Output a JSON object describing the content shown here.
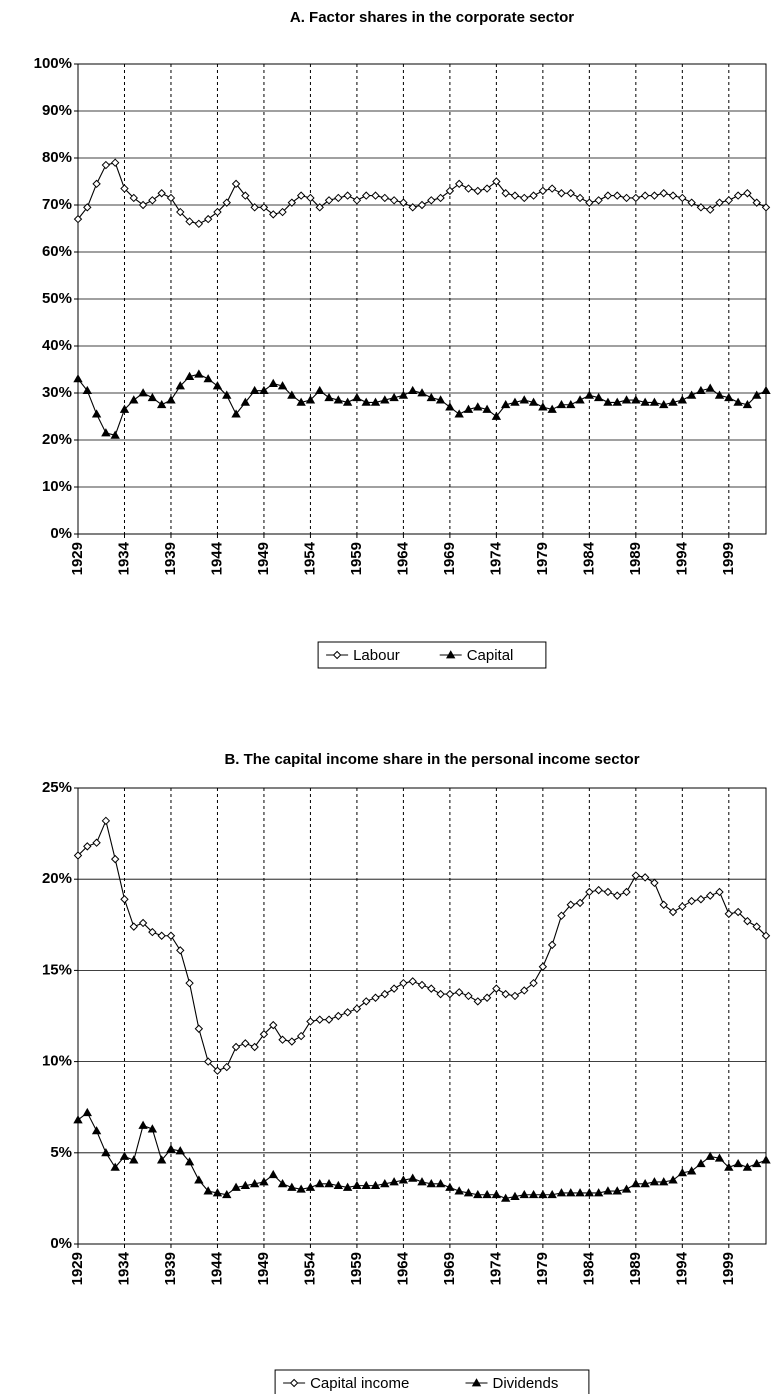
{
  "chart_data": [
    {
      "type": "line",
      "title": "A. Factor shares in the corporate sector",
      "x": [
        1929,
        1930,
        1931,
        1932,
        1933,
        1934,
        1935,
        1936,
        1937,
        1938,
        1939,
        1940,
        1941,
        1942,
        1943,
        1944,
        1945,
        1946,
        1947,
        1948,
        1949,
        1950,
        1951,
        1952,
        1953,
        1954,
        1955,
        1956,
        1957,
        1958,
        1959,
        1960,
        1961,
        1962,
        1963,
        1964,
        1965,
        1966,
        1967,
        1968,
        1969,
        1970,
        1971,
        1972,
        1973,
        1974,
        1975,
        1976,
        1977,
        1978,
        1979,
        1980,
        1981,
        1982,
        1983,
        1984,
        1985,
        1986,
        1987,
        1988,
        1989,
        1990,
        1991,
        1992,
        1993,
        1994,
        1995,
        1996,
        1997,
        1998,
        1999,
        2000,
        2001,
        2002,
        2003
      ],
      "xlim": [
        1929,
        2003
      ],
      "xticks": [
        1929,
        1934,
        1939,
        1944,
        1949,
        1954,
        1959,
        1964,
        1969,
        1974,
        1979,
        1984,
        1989,
        1994,
        1999
      ],
      "ylim": [
        0,
        100
      ],
      "yticks": [
        {
          "value": 0,
          "label": "0%"
        },
        {
          "value": 10,
          "label": "10%"
        },
        {
          "value": 20,
          "label": "20%"
        },
        {
          "value": 30,
          "label": "30%"
        },
        {
          "value": 40,
          "label": "40%"
        },
        {
          "value": 50,
          "label": "50%"
        },
        {
          "value": 60,
          "label": "60%"
        },
        {
          "value": 70,
          "label": "70%"
        },
        {
          "value": 80,
          "label": "80%"
        },
        {
          "value": 90,
          "label": "90%"
        },
        {
          "value": 100,
          "label": "100%"
        }
      ],
      "grid": true,
      "xgrid_style": "dashed",
      "legend": "bottom",
      "series": [
        {
          "name": "Labour",
          "color": "#000000",
          "marker": "diamond",
          "values": [
            67,
            69.5,
            74.5,
            78.5,
            79,
            73.5,
            71.5,
            70,
            71,
            72.5,
            71.5,
            68.5,
            66.5,
            66,
            67,
            68.5,
            70.5,
            74.5,
            72,
            69.5,
            69.5,
            68,
            68.5,
            70.5,
            72,
            71.5,
            69.5,
            71,
            71.5,
            72,
            71,
            72,
            72,
            71.5,
            71,
            70.5,
            69.5,
            70,
            71,
            71.5,
            73,
            74.5,
            73.5,
            73,
            73.5,
            75,
            72.5,
            72,
            71.5,
            72,
            73,
            73.5,
            72.5,
            72.5,
            71.5,
            70.5,
            71,
            72,
            72,
            71.5,
            71.5,
            72,
            72,
            72.5,
            72,
            71.5,
            70.5,
            69.5,
            69,
            70.5,
            71,
            72,
            72.5,
            70.5,
            69.5
          ]
        },
        {
          "name": "Capital",
          "color": "#000000",
          "marker": "triangle",
          "values": [
            33,
            30.5,
            25.5,
            21.5,
            21,
            26.5,
            28.5,
            30,
            29,
            27.5,
            28.5,
            31.5,
            33.5,
            34,
            33,
            31.5,
            29.5,
            25.5,
            28,
            30.5,
            30.5,
            32,
            31.5,
            29.5,
            28,
            28.5,
            30.5,
            29,
            28.5,
            28,
            29,
            28,
            28,
            28.5,
            29,
            29.5,
            30.5,
            30,
            29,
            28.5,
            27,
            25.5,
            26.5,
            27,
            26.5,
            25,
            27.5,
            28,
            28.5,
            28,
            27,
            26.5,
            27.5,
            27.5,
            28.5,
            29.5,
            29,
            28,
            28,
            28.5,
            28.5,
            28,
            28,
            27.5,
            28,
            28.5,
            29.5,
            30.5,
            31,
            29.5,
            29,
            28,
            27.5,
            29.5,
            30.5
          ]
        }
      ]
    },
    {
      "type": "line",
      "title": "B. The capital income share in the personal income sector",
      "x": [
        1929,
        1930,
        1931,
        1932,
        1933,
        1934,
        1935,
        1936,
        1937,
        1938,
        1939,
        1940,
        1941,
        1942,
        1943,
        1944,
        1945,
        1946,
        1947,
        1948,
        1949,
        1950,
        1951,
        1952,
        1953,
        1954,
        1955,
        1956,
        1957,
        1958,
        1959,
        1960,
        1961,
        1962,
        1963,
        1964,
        1965,
        1966,
        1967,
        1968,
        1969,
        1970,
        1971,
        1972,
        1973,
        1974,
        1975,
        1976,
        1977,
        1978,
        1979,
        1980,
        1981,
        1982,
        1983,
        1984,
        1985,
        1986,
        1987,
        1988,
        1989,
        1990,
        1991,
        1992,
        1993,
        1994,
        1995,
        1996,
        1997,
        1998,
        1999,
        2000,
        2001,
        2002,
        2003
      ],
      "xlim": [
        1929,
        2003
      ],
      "xticks": [
        1929,
        1934,
        1939,
        1944,
        1949,
        1954,
        1959,
        1964,
        1969,
        1974,
        1979,
        1984,
        1989,
        1994,
        1999
      ],
      "ylim": [
        0,
        25
      ],
      "yticks": [
        {
          "value": 0,
          "label": "0%"
        },
        {
          "value": 5,
          "label": "5%"
        },
        {
          "value": 10,
          "label": "10%"
        },
        {
          "value": 15,
          "label": "15%"
        },
        {
          "value": 20,
          "label": "20%"
        },
        {
          "value": 25,
          "label": "25%"
        }
      ],
      "grid": true,
      "xgrid_style": "dashed",
      "legend": "bottom",
      "series": [
        {
          "name": "Capital income",
          "color": "#000000",
          "marker": "diamond",
          "values": [
            21.3,
            21.8,
            22,
            23.2,
            21.1,
            18.9,
            17.4,
            17.6,
            17.1,
            16.9,
            16.9,
            16.1,
            14.3,
            11.8,
            10,
            9.5,
            9.7,
            10.8,
            11,
            10.8,
            11.5,
            12,
            11.2,
            11.1,
            11.4,
            12.2,
            12.3,
            12.3,
            12.5,
            12.7,
            12.9,
            13.3,
            13.5,
            13.7,
            14,
            14.3,
            14.4,
            14.2,
            14,
            13.7,
            13.7,
            13.8,
            13.6,
            13.3,
            13.5,
            14,
            13.7,
            13.6,
            13.9,
            14.3,
            15.2,
            16.4,
            18,
            18.6,
            18.7,
            19.3,
            19.4,
            19.3,
            19.1,
            19.3,
            20.2,
            20.1,
            19.8,
            18.6,
            18.2,
            18.5,
            18.8,
            18.9,
            19.1,
            19.3,
            18.1,
            18.2,
            17.7,
            17.4,
            16.9
          ]
        },
        {
          "name": "Dividends",
          "color": "#000000",
          "marker": "triangle",
          "values": [
            6.8,
            7.2,
            6.2,
            5,
            4.2,
            4.8,
            4.6,
            6.5,
            6.3,
            4.6,
            5.2,
            5.1,
            4.5,
            3.5,
            2.9,
            2.8,
            2.7,
            3.1,
            3.2,
            3.3,
            3.4,
            3.8,
            3.3,
            3.1,
            3,
            3.1,
            3.3,
            3.3,
            3.2,
            3.1,
            3.2,
            3.2,
            3.2,
            3.3,
            3.4,
            3.5,
            3.6,
            3.4,
            3.3,
            3.3,
            3.1,
            2.9,
            2.8,
            2.7,
            2.7,
            2.7,
            2.5,
            2.6,
            2.7,
            2.7,
            2.7,
            2.7,
            2.8,
            2.8,
            2.8,
            2.8,
            2.8,
            2.9,
            2.9,
            3,
            3.3,
            3.3,
            3.4,
            3.4,
            3.5,
            3.9,
            4,
            4.4,
            4.8,
            4.7,
            4.2,
            4.4,
            4.2,
            4.4,
            4.6
          ]
        }
      ]
    }
  ]
}
